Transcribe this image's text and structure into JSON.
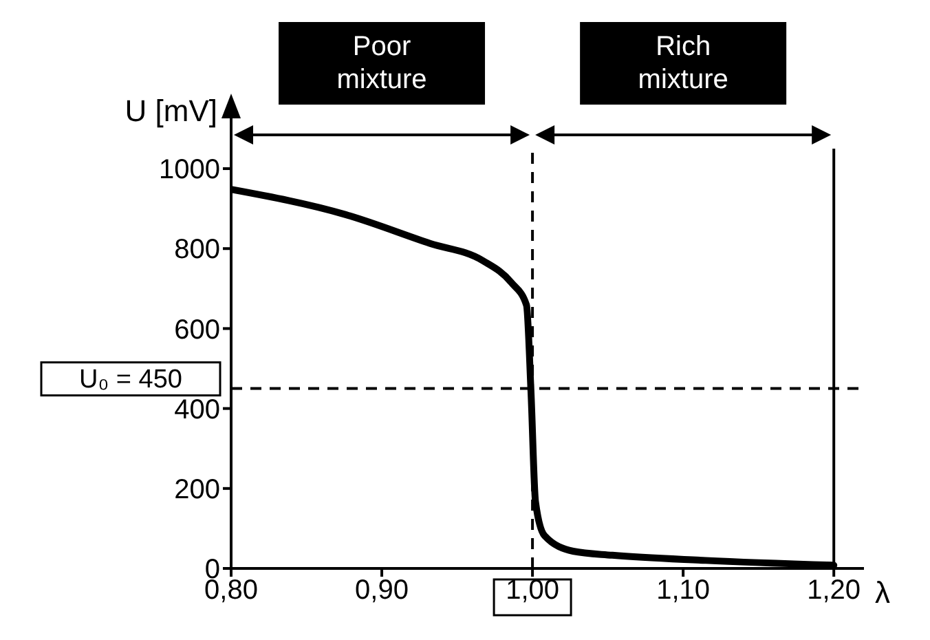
{
  "chart_data": {
    "type": "line",
    "xlabel": "λ",
    "ylabel": "U [mV]",
    "annotations": [
      "Poor\nmixture",
      "Rich\nmixture"
    ],
    "xlim": [
      0.8,
      1.22
    ],
    "ylim": [
      0,
      1050
    ],
    "xticks": [
      {
        "value": 0.8,
        "label": "0,80"
      },
      {
        "value": 0.9,
        "label": "0,90"
      },
      {
        "value": 1.0,
        "label": "1,00"
      },
      {
        "value": 1.1,
        "label": "1,10"
      },
      {
        "value": 1.2,
        "label": "1,20"
      }
    ],
    "yticks": [
      0,
      200,
      400,
      600,
      800,
      1000
    ],
    "ref_lines": [
      {
        "axis": "y",
        "value": 450,
        "label": "U₀ = 450",
        "line_style": "dashed",
        "color": "#000000"
      },
      {
        "axis": "x",
        "value": 1.0,
        "label": null,
        "line_style": "dashed",
        "color": "#000000"
      },
      {
        "axis": "x",
        "value": 1.2,
        "label": null,
        "line_style": "solid",
        "color": "#000000"
      }
    ],
    "series": [
      {
        "color": "#000000",
        "x": [
          0.8,
          0.876,
          0.932,
          0.967,
          0.986,
          0.996,
          0.999,
          1.002,
          1.008,
          1.027,
          1.053,
          1.115,
          1.2
        ],
        "values": [
          948,
          885,
          813,
          770,
          715,
          659,
          443,
          167,
          82,
          43,
          33,
          20,
          8
        ]
      }
    ]
  }
}
